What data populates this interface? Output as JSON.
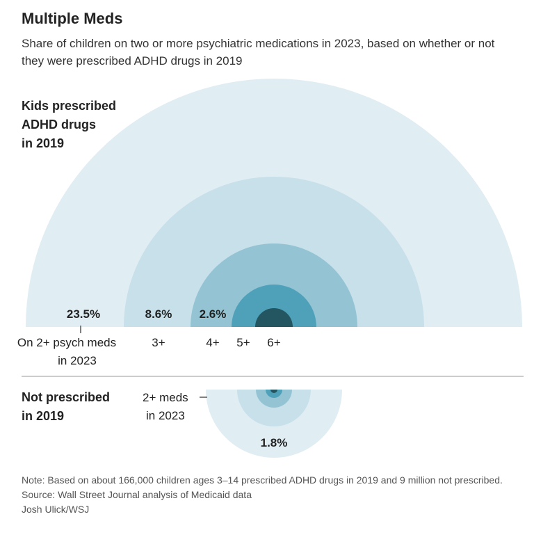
{
  "title": "Multiple Meds",
  "subtitle": "Share of children on two or more psychiatric medications in 2023, based on whether or not they were prescribed ADHD drugs in 2019",
  "chart_data": {
    "type": "nested-semicircle",
    "groups": [
      {
        "name_lines": [
          "Kids prescribed",
          "ADHD drugs",
          "in 2019"
        ],
        "orientation": "up",
        "rings": [
          {
            "label": "2+",
            "value": 23.5,
            "value_label": "23.5%",
            "color": "#e0edf3"
          },
          {
            "label": "3+",
            "value": 8.6,
            "value_label": "8.6%",
            "color": "#c7e0ea"
          },
          {
            "label": "4+",
            "value": 2.6,
            "value_label": "2.6%",
            "color": "#94c4d4"
          },
          {
            "label": "5+",
            "value": null,
            "value_label": "",
            "color": "#4fa1ba"
          },
          {
            "label": "6+",
            "value": null,
            "value_label": "",
            "color": "#235660"
          }
        ],
        "axis_first_lines": [
          "On 2+ psych meds",
          "in 2023"
        ]
      },
      {
        "name_lines": [
          "Not prescribed",
          "in 2019"
        ],
        "orientation": "down",
        "rings": [
          {
            "label": "2+",
            "value": 1.8,
            "value_label": "1.8%",
            "color": "#e0edf3"
          },
          {
            "label": "3+",
            "value": null,
            "value_label": "",
            "color": "#c7e0ea"
          },
          {
            "label": "4+",
            "value": null,
            "value_label": "",
            "color": "#94c4d4"
          },
          {
            "label": "5+",
            "value": null,
            "value_label": "",
            "color": "#4fa1ba"
          },
          {
            "label": "6+",
            "value": null,
            "value_label": "",
            "color": "#235660"
          }
        ],
        "annotation_lines": [
          "2+ meds",
          "in 2023"
        ]
      }
    ]
  },
  "notes": {
    "note": "Note: Based on about 166,000 children ages 3–14 prescribed ADHD drugs in 2019 and 9 million not prescribed.",
    "source": "Source: Wall Street Journal analysis of Medicaid data",
    "credit": "Josh Ulick/WSJ"
  }
}
